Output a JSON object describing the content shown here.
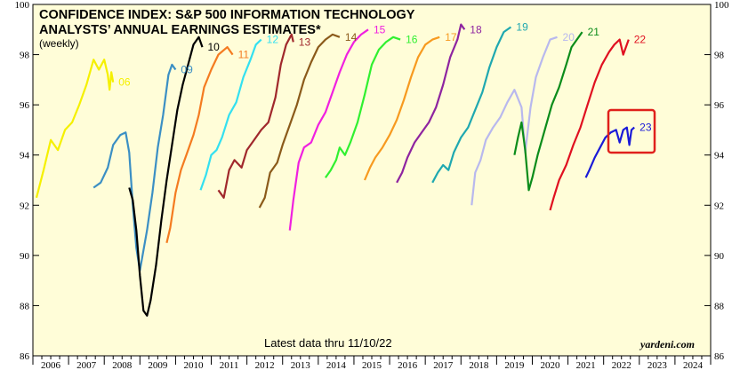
{
  "chart_data": {
    "type": "line",
    "title_line1": "CONFIDENCE INDEX: S&P 500 INFORMATION TECHNOLOGY",
    "title_line2": "ANALYSTS’ ANNUAL EARNINGS ESTIMATES*",
    "subtitle": "(weekly)",
    "note": "Latest data thru 11/10/22",
    "source": "yardeni.com",
    "ylim": [
      86,
      100
    ],
    "yticks": [
      86,
      88,
      90,
      92,
      94,
      96,
      98,
      100
    ],
    "xlim": [
      2006,
      2025
    ],
    "xticks": [
      "2006",
      "2007",
      "2008",
      "2009",
      "2010",
      "2011",
      "2012",
      "2013",
      "2014",
      "2015",
      "2016",
      "2017",
      "2018",
      "2019",
      "2020",
      "2021",
      "2022",
      "2023",
      "2024"
    ],
    "highlight": {
      "series": "23",
      "color": "#e0201b"
    },
    "series": [
      {
        "name": "06",
        "color": "#f5f000",
        "points": [
          [
            2006.1,
            92.3
          ],
          [
            2006.3,
            93.4
          ],
          [
            2006.5,
            94.6
          ],
          [
            2006.7,
            94.2
          ],
          [
            2006.9,
            95.0
          ],
          [
            2007.1,
            95.3
          ],
          [
            2007.3,
            96.0
          ],
          [
            2007.5,
            96.8
          ],
          [
            2007.7,
            97.8
          ],
          [
            2007.85,
            97.4
          ],
          [
            2008.0,
            97.8
          ],
          [
            2008.1,
            97.2
          ],
          [
            2008.15,
            96.6
          ],
          [
            2008.2,
            97.3
          ],
          [
            2008.25,
            96.9
          ]
        ]
      },
      {
        "name": "09",
        "color": "#3b8fc4",
        "points": [
          [
            2007.7,
            92.7
          ],
          [
            2007.9,
            92.9
          ],
          [
            2008.1,
            93.5
          ],
          [
            2008.25,
            94.4
          ],
          [
            2008.45,
            94.8
          ],
          [
            2008.6,
            94.9
          ],
          [
            2008.7,
            94.1
          ],
          [
            2008.8,
            92.0
          ],
          [
            2008.9,
            90.3
          ],
          [
            2009.0,
            89.4
          ],
          [
            2009.2,
            91.0
          ],
          [
            2009.35,
            92.5
          ],
          [
            2009.5,
            94.3
          ],
          [
            2009.65,
            95.6
          ],
          [
            2009.8,
            97.2
          ],
          [
            2009.9,
            97.6
          ],
          [
            2010.0,
            97.4
          ]
        ]
      },
      {
        "name": "10",
        "color": "#000000",
        "points": [
          [
            2008.7,
            92.7
          ],
          [
            2008.8,
            92.2
          ],
          [
            2008.9,
            91.0
          ],
          [
            2009.0,
            89.2
          ],
          [
            2009.1,
            87.8
          ],
          [
            2009.2,
            87.6
          ],
          [
            2009.3,
            88.2
          ],
          [
            2009.45,
            89.6
          ],
          [
            2009.6,
            91.4
          ],
          [
            2009.75,
            93.0
          ],
          [
            2009.9,
            94.4
          ],
          [
            2010.05,
            95.8
          ],
          [
            2010.2,
            96.8
          ],
          [
            2010.35,
            97.6
          ],
          [
            2010.5,
            98.4
          ],
          [
            2010.65,
            98.7
          ],
          [
            2010.75,
            98.3
          ]
        ]
      },
      {
        "name": "11",
        "color": "#f47b20",
        "points": [
          [
            2009.75,
            90.5
          ],
          [
            2009.85,
            91.1
          ],
          [
            2010.0,
            92.5
          ],
          [
            2010.15,
            93.4
          ],
          [
            2010.3,
            94.0
          ],
          [
            2010.5,
            94.8
          ],
          [
            2010.65,
            95.6
          ],
          [
            2010.8,
            96.7
          ],
          [
            2011.0,
            97.4
          ],
          [
            2011.2,
            98.0
          ],
          [
            2011.45,
            98.3
          ],
          [
            2011.6,
            98.0
          ]
        ]
      },
      {
        "name": "12",
        "color": "#33e0f0",
        "points": [
          [
            2010.7,
            92.6
          ],
          [
            2010.85,
            93.2
          ],
          [
            2011.0,
            94.0
          ],
          [
            2011.15,
            94.2
          ],
          [
            2011.3,
            94.7
          ],
          [
            2011.5,
            95.6
          ],
          [
            2011.7,
            96.1
          ],
          [
            2011.9,
            97.1
          ],
          [
            2012.1,
            97.8
          ],
          [
            2012.25,
            98.4
          ],
          [
            2012.4,
            98.6
          ]
        ]
      },
      {
        "name": "13",
        "color": "#a0282c",
        "points": [
          [
            2011.2,
            92.6
          ],
          [
            2011.35,
            92.3
          ],
          [
            2011.5,
            93.4
          ],
          [
            2011.65,
            93.8
          ],
          [
            2011.85,
            93.5
          ],
          [
            2012.0,
            94.2
          ],
          [
            2012.2,
            94.6
          ],
          [
            2012.4,
            95.0
          ],
          [
            2012.6,
            95.3
          ],
          [
            2012.8,
            96.3
          ],
          [
            2012.95,
            97.6
          ],
          [
            2013.1,
            98.4
          ],
          [
            2013.25,
            98.8
          ],
          [
            2013.3,
            98.5
          ]
        ]
      },
      {
        "name": "14",
        "color": "#8b5a1a",
        "points": [
          [
            2012.35,
            91.9
          ],
          [
            2012.5,
            92.3
          ],
          [
            2012.65,
            93.3
          ],
          [
            2012.85,
            93.7
          ],
          [
            2013.0,
            94.4
          ],
          [
            2013.2,
            95.2
          ],
          [
            2013.4,
            96.0
          ],
          [
            2013.6,
            97.0
          ],
          [
            2013.8,
            97.7
          ],
          [
            2014.0,
            98.3
          ],
          [
            2014.2,
            98.6
          ],
          [
            2014.4,
            98.8
          ],
          [
            2014.6,
            98.7
          ]
        ]
      },
      {
        "name": "15",
        "color": "#f020e0",
        "points": [
          [
            2013.2,
            91.0
          ],
          [
            2013.3,
            92.2
          ],
          [
            2013.45,
            93.7
          ],
          [
            2013.6,
            94.3
          ],
          [
            2013.8,
            94.5
          ],
          [
            2014.0,
            95.2
          ],
          [
            2014.2,
            95.7
          ],
          [
            2014.4,
            96.5
          ],
          [
            2014.6,
            97.3
          ],
          [
            2014.8,
            98.0
          ],
          [
            2015.0,
            98.5
          ],
          [
            2015.2,
            98.8
          ],
          [
            2015.4,
            99.0
          ]
        ]
      },
      {
        "name": "16",
        "color": "#30f030",
        "points": [
          [
            2014.2,
            93.1
          ],
          [
            2014.35,
            93.4
          ],
          [
            2014.5,
            93.8
          ],
          [
            2014.6,
            94.3
          ],
          [
            2014.75,
            94.0
          ],
          [
            2014.9,
            94.5
          ],
          [
            2015.1,
            95.3
          ],
          [
            2015.3,
            96.4
          ],
          [
            2015.5,
            97.6
          ],
          [
            2015.7,
            98.2
          ],
          [
            2015.9,
            98.5
          ],
          [
            2016.1,
            98.7
          ],
          [
            2016.3,
            98.6
          ]
        ]
      },
      {
        "name": "17",
        "color": "#f79a1f",
        "points": [
          [
            2015.3,
            93.0
          ],
          [
            2015.45,
            93.5
          ],
          [
            2015.6,
            93.9
          ],
          [
            2015.8,
            94.3
          ],
          [
            2016.0,
            94.8
          ],
          [
            2016.2,
            95.4
          ],
          [
            2016.4,
            96.2
          ],
          [
            2016.6,
            97.1
          ],
          [
            2016.8,
            97.9
          ],
          [
            2017.0,
            98.4
          ],
          [
            2017.2,
            98.6
          ],
          [
            2017.4,
            98.7
          ]
        ]
      },
      {
        "name": "18",
        "color": "#8e24a0",
        "points": [
          [
            2016.2,
            92.9
          ],
          [
            2016.35,
            93.3
          ],
          [
            2016.5,
            93.9
          ],
          [
            2016.7,
            94.5
          ],
          [
            2016.9,
            94.9
          ],
          [
            2017.1,
            95.3
          ],
          [
            2017.3,
            95.9
          ],
          [
            2017.5,
            96.8
          ],
          [
            2017.7,
            97.9
          ],
          [
            2017.9,
            98.6
          ],
          [
            2018.0,
            99.2
          ],
          [
            2018.1,
            99.0
          ]
        ]
      },
      {
        "name": "19",
        "color": "#1fa8b0",
        "points": [
          [
            2017.2,
            92.9
          ],
          [
            2017.35,
            93.3
          ],
          [
            2017.5,
            93.6
          ],
          [
            2017.65,
            93.4
          ],
          [
            2017.8,
            94.1
          ],
          [
            2018.0,
            94.7
          ],
          [
            2018.2,
            95.1
          ],
          [
            2018.4,
            95.8
          ],
          [
            2018.6,
            96.5
          ],
          [
            2018.8,
            97.5
          ],
          [
            2019.0,
            98.3
          ],
          [
            2019.2,
            98.9
          ],
          [
            2019.4,
            99.1
          ]
        ]
      },
      {
        "name": "20",
        "color": "#b8b8ee",
        "points": [
          [
            2018.3,
            92.0
          ],
          [
            2018.4,
            93.3
          ],
          [
            2018.55,
            93.8
          ],
          [
            2018.7,
            94.6
          ],
          [
            2018.9,
            95.1
          ],
          [
            2019.1,
            95.5
          ],
          [
            2019.3,
            96.1
          ],
          [
            2019.5,
            96.6
          ],
          [
            2019.7,
            95.9
          ],
          [
            2019.8,
            94.1
          ],
          [
            2019.95,
            95.9
          ],
          [
            2020.1,
            97.1
          ],
          [
            2020.3,
            97.9
          ],
          [
            2020.5,
            98.6
          ],
          [
            2020.7,
            98.7
          ]
        ]
      },
      {
        "name": "21",
        "color": "#0b8c1a",
        "points": [
          [
            2019.5,
            94.0
          ],
          [
            2019.6,
            94.7
          ],
          [
            2019.7,
            95.3
          ],
          [
            2019.8,
            94.2
          ],
          [
            2019.9,
            92.6
          ],
          [
            2020.0,
            93.1
          ],
          [
            2020.15,
            94.0
          ],
          [
            2020.35,
            95.0
          ],
          [
            2020.55,
            96.0
          ],
          [
            2020.75,
            96.7
          ],
          [
            2020.95,
            97.6
          ],
          [
            2021.1,
            98.3
          ],
          [
            2021.25,
            98.6
          ],
          [
            2021.4,
            98.9
          ]
        ]
      },
      {
        "name": "22",
        "color": "#e01020",
        "points": [
          [
            2020.5,
            91.8
          ],
          [
            2020.6,
            92.3
          ],
          [
            2020.75,
            93.0
          ],
          [
            2020.95,
            93.6
          ],
          [
            2021.15,
            94.4
          ],
          [
            2021.35,
            95.1
          ],
          [
            2021.55,
            96.0
          ],
          [
            2021.75,
            96.9
          ],
          [
            2021.95,
            97.6
          ],
          [
            2022.15,
            98.1
          ],
          [
            2022.3,
            98.4
          ],
          [
            2022.45,
            98.6
          ],
          [
            2022.55,
            98.0
          ],
          [
            2022.7,
            98.6
          ]
        ]
      },
      {
        "name": "23",
        "color": "#1a1ad8",
        "points": [
          [
            2021.5,
            93.1
          ],
          [
            2021.6,
            93.4
          ],
          [
            2021.75,
            93.9
          ],
          [
            2021.9,
            94.3
          ],
          [
            2022.05,
            94.7
          ],
          [
            2022.2,
            94.9
          ],
          [
            2022.35,
            95.0
          ],
          [
            2022.45,
            94.5
          ],
          [
            2022.55,
            95.0
          ],
          [
            2022.65,
            95.1
          ],
          [
            2022.72,
            94.4
          ],
          [
            2022.78,
            95.0
          ],
          [
            2022.86,
            95.1
          ]
        ]
      }
    ]
  }
}
